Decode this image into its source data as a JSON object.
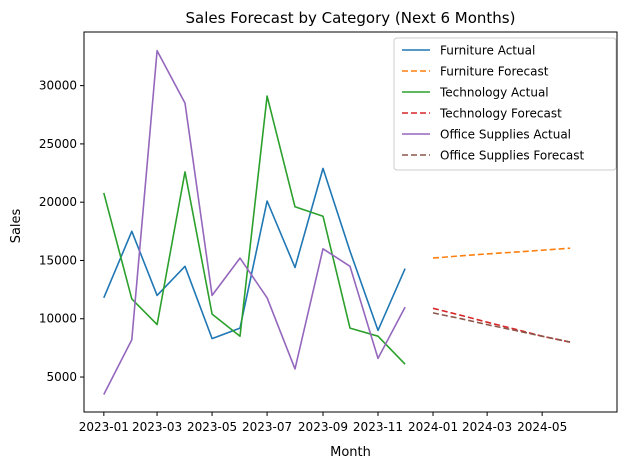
{
  "chart_data": {
    "type": "line",
    "title": "Sales Forecast by Category (Next 6 Months)",
    "xlabel": "Month",
    "ylabel": "Sales",
    "xlim": [
      "2022-12-10",
      "2024-07-23"
    ],
    "ylim": [
      2000,
      34600
    ],
    "x_ticks": [
      "2023-01",
      "2023-03",
      "2023-05",
      "2023-07",
      "2023-09",
      "2023-11",
      "2024-01",
      "2024-03",
      "2024-05"
    ],
    "y_ticks": [
      5000,
      10000,
      15000,
      20000,
      25000,
      30000
    ],
    "grid": false,
    "legend_position": "top-right",
    "series": [
      {
        "name": "Furniture Actual",
        "color": "#1f77b4",
        "style": "solid",
        "x": [
          "2023-01-01",
          "2023-02-01",
          "2023-03-01",
          "2023-04-01",
          "2023-05-01",
          "2023-06-01",
          "2023-07-01",
          "2023-08-01",
          "2023-09-01",
          "2023-10-01",
          "2023-11-01",
          "2023-12-01"
        ],
        "values": [
          11800,
          17500,
          12000,
          14500,
          8300,
          9200,
          20100,
          14400,
          22900,
          15800,
          9000,
          14300
        ]
      },
      {
        "name": "Furniture Forecast",
        "color": "#ff7f0e",
        "style": "dashed",
        "x": [
          "2024-01-01",
          "2024-02-01",
          "2024-03-01",
          "2024-04-01",
          "2024-05-01",
          "2024-06-01"
        ],
        "values": [
          15200,
          15400,
          15560,
          15720,
          15880,
          16050
        ]
      },
      {
        "name": "Technology Actual",
        "color": "#2ca02c",
        "style": "solid",
        "x": [
          "2023-01-01",
          "2023-02-01",
          "2023-03-01",
          "2023-04-01",
          "2023-05-01",
          "2023-06-01",
          "2023-07-01",
          "2023-08-01",
          "2023-09-01",
          "2023-10-01",
          "2023-11-01",
          "2023-12-01"
        ],
        "values": [
          20800,
          11700,
          9500,
          22600,
          10400,
          8500,
          29100,
          19600,
          18800,
          9200,
          8500,
          6100
        ]
      },
      {
        "name": "Technology Forecast",
        "color": "#d62728",
        "style": "dashed",
        "x": [
          "2024-01-01",
          "2024-02-01",
          "2024-03-01",
          "2024-04-01",
          "2024-05-01",
          "2024-06-01"
        ],
        "values": [
          10900,
          10300,
          9700,
          9100,
          8500,
          8000
        ]
      },
      {
        "name": "Office Supplies Actual",
        "color": "#9467bd",
        "style": "solid",
        "x": [
          "2023-01-01",
          "2023-02-01",
          "2023-03-01",
          "2023-04-01",
          "2023-05-01",
          "2023-06-01",
          "2023-07-01",
          "2023-08-01",
          "2023-09-01",
          "2023-10-01",
          "2023-11-01",
          "2023-12-01"
        ],
        "values": [
          3500,
          8200,
          33000,
          28500,
          12000,
          15200,
          11800,
          5700,
          16000,
          14500,
          6600,
          11000
        ]
      },
      {
        "name": "Office Supplies Forecast",
        "color": "#8c564b",
        "style": "dashed",
        "x": [
          "2024-01-01",
          "2024-02-01",
          "2024-03-01",
          "2024-04-01",
          "2024-05-01",
          "2024-06-01"
        ],
        "values": [
          10500,
          10000,
          9500,
          9000,
          8500,
          8000
        ]
      }
    ]
  }
}
